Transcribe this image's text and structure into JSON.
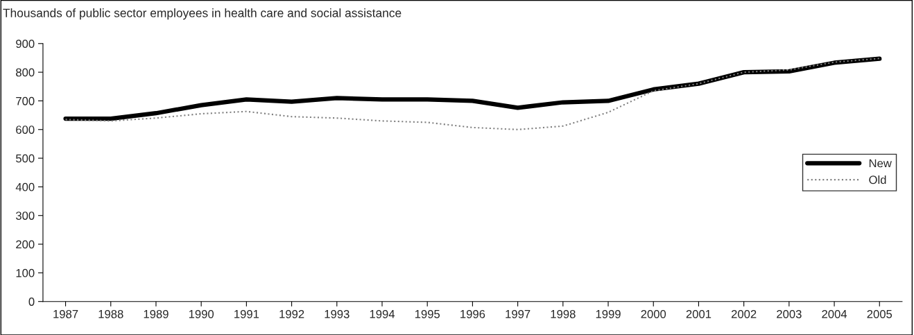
{
  "chart_data": {
    "type": "line",
    "title": "Thousands of public sector employees in health care and social assistance",
    "categories": [
      "1987",
      "1988",
      "1989",
      "1990",
      "1991",
      "1992",
      "1993",
      "1994",
      "1995",
      "1996",
      "1997",
      "1998",
      "1999",
      "2000",
      "2001",
      "2002",
      "2003",
      "2004",
      "2005"
    ],
    "series": [
      {
        "name": "New",
        "color": "#000000",
        "line_style": "solid",
        "values": [
          638,
          638,
          657,
          685,
          705,
          697,
          710,
          705,
          705,
          700,
          676,
          695,
          700,
          740,
          760,
          800,
          803,
          833,
          847
        ]
      },
      {
        "name": "Old",
        "color": "#808080",
        "line_style": "dotted",
        "values": [
          635,
          630,
          640,
          655,
          663,
          645,
          640,
          630,
          625,
          607,
          600,
          612,
          660,
          735,
          760,
          800,
          808,
          835,
          848
        ]
      }
    ],
    "ylim": [
      0,
      900
    ],
    "yticks": [
      0,
      100,
      200,
      300,
      400,
      500,
      600,
      700,
      800,
      900
    ],
    "grid": false,
    "legend": "center right"
  }
}
